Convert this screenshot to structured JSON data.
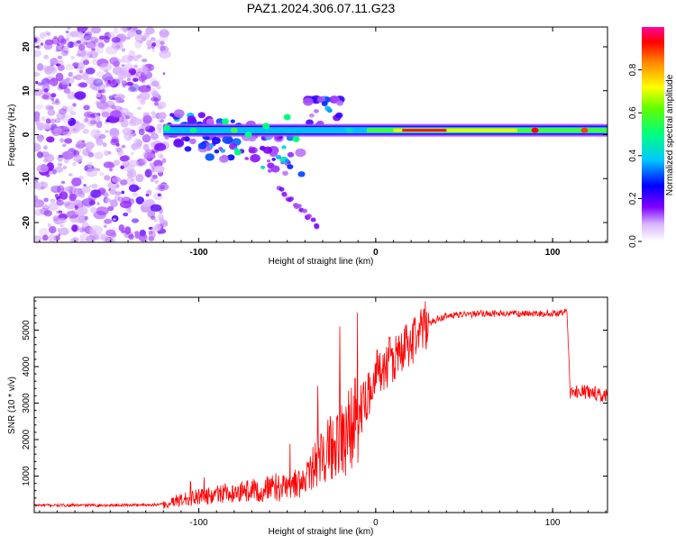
{
  "title": "PAZ1.2024.306.07.11.G23",
  "chart_data": [
    {
      "type": "heatmap",
      "xlabel": "Height of straight line (km)",
      "ylabel": "Frequency (Hz)",
      "xlim": [
        -193,
        131
      ],
      "ylim": [
        -24.5,
        24.5
      ],
      "x_ticks": [
        -100,
        0,
        100
      ],
      "y_ticks": [
        -20,
        -10,
        0,
        10,
        20
      ],
      "colorbar": {
        "label": "Normalized spectral amplitude",
        "range": [
          0,
          1
        ],
        "ticks": [
          "0.0",
          "0.2",
          "0.4",
          "0.6",
          "0.8"
        ],
        "colors": [
          "#ffffff",
          "#c080ff",
          "#8000ff",
          "#0000ff",
          "#00c0ff",
          "#00ff80",
          "#80ff00",
          "#ffff00",
          "#ff8000",
          "#ff0000",
          "#ff00a0"
        ]
      },
      "features": {
        "noise_region_x": [
          -193,
          -119
        ],
        "main_line_freq_hz": 1.0,
        "main_line_x": [
          -120,
          131
        ],
        "scattered_components_x": [
          -120,
          -20
        ],
        "scattered_components_freq_hz": [
          -20,
          8
        ]
      }
    },
    {
      "type": "line",
      "xlabel": "Height of straight line (km)",
      "ylabel": "SNR (10 * v/v)",
      "xlim": [
        -193,
        131
      ],
      "ylim": [
        0,
        5900
      ],
      "x_ticks": [
        -100,
        0,
        100
      ],
      "y_ticks": [
        1000,
        2000,
        3000,
        4000,
        5000
      ],
      "color": "#ff0000",
      "profile_x": [
        -193,
        -150,
        -120,
        -110,
        -90,
        -70,
        -50,
        -40,
        -30,
        -20,
        -10,
        0,
        10,
        20,
        30,
        40,
        60,
        80,
        100,
        108,
        110,
        120,
        131
      ],
      "profile_y": [
        200,
        200,
        220,
        350,
        500,
        600,
        700,
        900,
        1500,
        2000,
        2600,
        3800,
        4200,
        4700,
        5200,
        5400,
        5450,
        5450,
        5450,
        5500,
        3300,
        3300,
        3200
      ]
    }
  ]
}
